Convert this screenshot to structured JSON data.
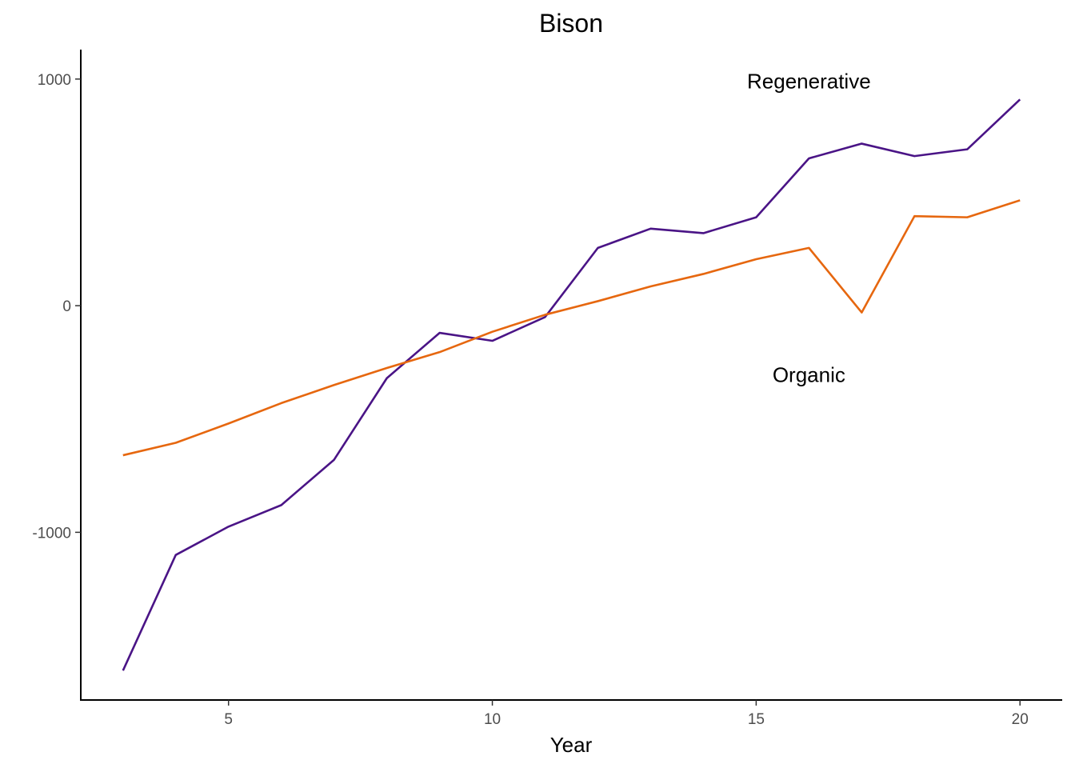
{
  "chart_data": {
    "type": "line",
    "title": "Bison",
    "xlabel": "Year",
    "ylabel": "",
    "xlim": [
      2.2,
      20.8
    ],
    "ylim": [
      -1740,
      1130
    ],
    "xticks": [
      5,
      10,
      15,
      20
    ],
    "yticks": [
      1000,
      0,
      -1000
    ],
    "grid": false,
    "legend": "none",
    "x": [
      3,
      4,
      5,
      6,
      7,
      8,
      9,
      10,
      11,
      12,
      13,
      14,
      15,
      16,
      17,
      18,
      19,
      20
    ],
    "series": [
      {
        "color": "#4a1486",
        "values": [
          -1610,
          -1100,
          -975,
          -880,
          -680,
          -320,
          -120,
          -155,
          -50,
          255,
          340,
          320,
          390,
          650,
          715,
          660,
          690,
          910
        ]
      },
      {
        "color": "#e6670f",
        "values": [
          -660,
          -605,
          -520,
          -430,
          -350,
          -275,
          -205,
          -115,
          -40,
          20,
          85,
          140,
          205,
          255,
          -30,
          395,
          390,
          465
        ]
      }
    ],
    "annotations": [
      {
        "text": "Regenerative",
        "x": 16,
        "y": 990
      },
      {
        "text": "Organic",
        "x": 16,
        "y": -305
      }
    ]
  }
}
